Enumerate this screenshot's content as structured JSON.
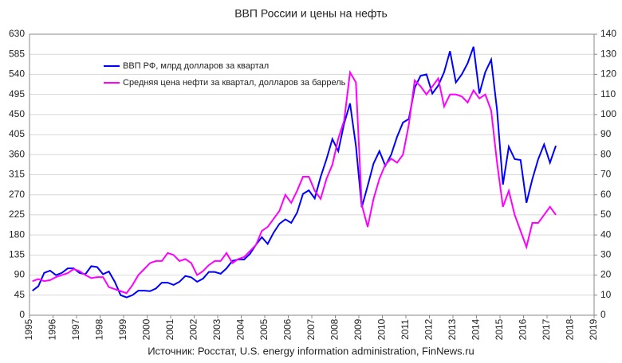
{
  "chart_data": {
    "type": "line",
    "title": "ВВП России и цены на нефть",
    "source": "Источник: Росстат, U.S. energy information administration, FinNews.ru",
    "legend": "upper left",
    "grid": true,
    "xlim": [
      1995,
      2019
    ],
    "xticks": [
      1995,
      1996,
      1997,
      1998,
      1999,
      2000,
      2001,
      2002,
      2003,
      2004,
      2005,
      2006,
      2007,
      2008,
      2009,
      2010,
      2011,
      2012,
      2013,
      2014,
      2015,
      2016,
      2017,
      2018,
      2019
    ],
    "ylim": [
      0,
      630
    ],
    "yticks": [
      0,
      45,
      90,
      135,
      180,
      225,
      270,
      315,
      360,
      405,
      450,
      495,
      540,
      585,
      630
    ],
    "y2lim": [
      0,
      140
    ],
    "y2ticks": [
      0,
      10,
      20,
      30,
      40,
      50,
      60,
      70,
      80,
      90,
      100,
      110,
      120,
      130,
      140
    ],
    "x": [
      1995.125,
      1995.375,
      1995.625,
      1995.875,
      1996.125,
      1996.375,
      1996.625,
      1996.875,
      1997.125,
      1997.375,
      1997.625,
      1997.875,
      1998.125,
      1998.375,
      1998.625,
      1998.875,
      1999.125,
      1999.375,
      1999.625,
      1999.875,
      2000.125,
      2000.375,
      2000.625,
      2000.875,
      2001.125,
      2001.375,
      2001.625,
      2001.875,
      2002.125,
      2002.375,
      2002.625,
      2002.875,
      2003.125,
      2003.375,
      2003.625,
      2003.875,
      2004.125,
      2004.375,
      2004.625,
      2004.875,
      2005.125,
      2005.375,
      2005.625,
      2005.875,
      2006.125,
      2006.375,
      2006.625,
      2006.875,
      2007.125,
      2007.375,
      2007.625,
      2007.875,
      2008.125,
      2008.375,
      2008.625,
      2008.875,
      2009.125,
      2009.375,
      2009.625,
      2009.875,
      2010.125,
      2010.375,
      2010.625,
      2010.875,
      2011.125,
      2011.375,
      2011.625,
      2011.875,
      2012.125,
      2012.375,
      2012.625,
      2012.875,
      2013.125,
      2013.375,
      2013.625,
      2013.875,
      2014.125,
      2014.375,
      2014.625,
      2014.875,
      2015.125,
      2015.375,
      2015.625,
      2015.875,
      2016.125,
      2016.375,
      2016.625,
      2016.875,
      2017.125,
      2017.375
    ],
    "series": [
      {
        "name": "ВВП РФ, млрд долларов за квартал",
        "color": "#0000ff",
        "axis": "y",
        "values": [
          55,
          65,
          95,
          100,
          90,
          95,
          105,
          105,
          95,
          92,
          110,
          108,
          92,
          98,
          75,
          45,
          40,
          45,
          55,
          55,
          54,
          60,
          73,
          73,
          68,
          75,
          88,
          85,
          75,
          82,
          97,
          97,
          93,
          105,
          122,
          125,
          125,
          138,
          158,
          175,
          160,
          185,
          205,
          215,
          207,
          230,
          272,
          280,
          262,
          310,
          350,
          395,
          368,
          430,
          475,
          380,
          242,
          290,
          340,
          368,
          335,
          360,
          400,
          432,
          440,
          510,
          537,
          540,
          497,
          515,
          545,
          592,
          522,
          540,
          565,
          602,
          497,
          545,
          573,
          460,
          293,
          378,
          350,
          348,
          252,
          305,
          350,
          383,
          342,
          380
        ]
      },
      {
        "name": "Средняя цена нефти за квартал, долларов за баррель",
        "color": "#ff00ff",
        "axis": "y2",
        "values": [
          17,
          18,
          17,
          17.5,
          19,
          20,
          21,
          23,
          22,
          20,
          18.5,
          19,
          19,
          14,
          13,
          12,
          11,
          15,
          20,
          23,
          26,
          27,
          27,
          31,
          30,
          27,
          28,
          26,
          20,
          22,
          25,
          27,
          27,
          31,
          26,
          28,
          29,
          32,
          35,
          42,
          44,
          48,
          52,
          60,
          56,
          62,
          69,
          69,
          62,
          58,
          68,
          75,
          88,
          97,
          121,
          116,
          55,
          44,
          58,
          68,
          75,
          78,
          76,
          80,
          95,
          117,
          114,
          110,
          114,
          118,
          104,
          110,
          110,
          109,
          106,
          112,
          108,
          110,
          102,
          76,
          54,
          62,
          50,
          42,
          34,
          46,
          46,
          50,
          54,
          50
        ]
      }
    ]
  }
}
